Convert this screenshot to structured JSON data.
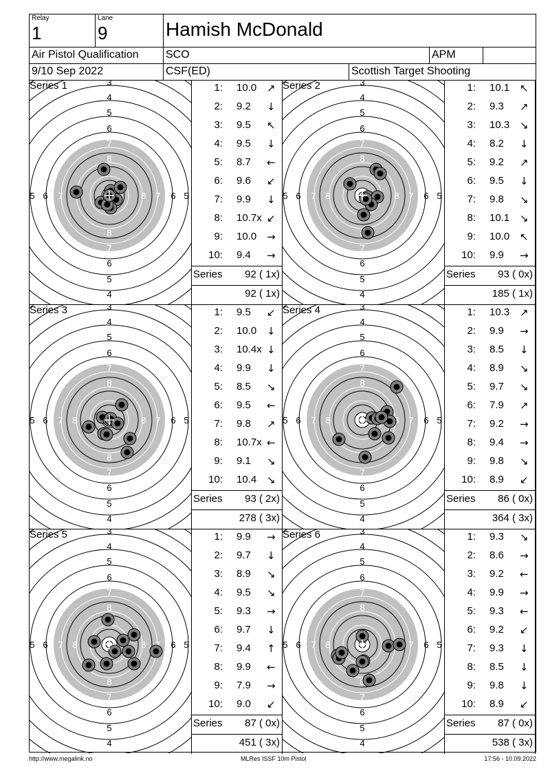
{
  "header": {
    "relay_label": "Relay",
    "relay_value": "1",
    "lane_label": "Lane",
    "lane_value": "9",
    "shooter_name": "Hamish McDonald",
    "event": "Air Pistol Qualification",
    "nation": "SCO",
    "class": "APM",
    "date": "9/10 Sep 2022",
    "club": "CSF(ED)",
    "organizer": "Scottish Target Shooting"
  },
  "series_total_label": "Series",
  "series": [
    {
      "label": "Series 1",
      "shots": [
        {
          "n": "1:",
          "v": "10.0",
          "dir": "up-right",
          "x": 2,
          "y": -7
        },
        {
          "n": "2:",
          "v": "9.2",
          "dir": "down",
          "x": -12,
          "y": 10
        },
        {
          "n": "3:",
          "v": "9.5",
          "dir": "up-left",
          "x": 16,
          "y": -12
        },
        {
          "n": "4:",
          "v": "9.5",
          "dir": "down",
          "x": 10,
          "y": 6
        },
        {
          "n": "5:",
          "v": "8.7",
          "dir": "left",
          "x": -48,
          "y": -5
        },
        {
          "n": "6:",
          "v": "9.6",
          "dir": "down-left",
          "x": 2,
          "y": 18
        },
        {
          "n": "7:",
          "v": "9.9",
          "dir": "down",
          "x": -3,
          "y": 13
        },
        {
          "n": "8:",
          "v": "10.7x",
          "dir": "down-left",
          "x": 0,
          "y": 0
        },
        {
          "n": "9:",
          "v": "10.0",
          "dir": "right",
          "x": 0,
          "y": 0
        },
        {
          "n": "10:",
          "v": "9.4",
          "dir": "right",
          "x": -8,
          "y": -38
        }
      ],
      "series_score": "92 ( 1x)",
      "running_total": "92 ( 1x)"
    },
    {
      "label": "Series 2",
      "shots": [
        {
          "n": "1:",
          "v": "10.1",
          "dir": "up-left",
          "x": 8,
          "y": 2
        },
        {
          "n": "2:",
          "v": "9.3",
          "dir": "up-right",
          "x": 20,
          "y": -38
        },
        {
          "n": "3:",
          "v": "10.3",
          "dir": "down-right",
          "x": 10,
          "y": 8
        },
        {
          "n": "4:",
          "v": "8.2",
          "dir": "down",
          "x": 8,
          "y": 54
        },
        {
          "n": "5:",
          "v": "9.2",
          "dir": "up-right",
          "x": 22,
          "y": 2
        },
        {
          "n": "6:",
          "v": "9.5",
          "dir": "down",
          "x": -18,
          "y": -17
        },
        {
          "n": "7:",
          "v": "9.8",
          "dir": "down-right",
          "x": 2,
          "y": 28
        },
        {
          "n": "8:",
          "v": "10.1",
          "dir": "down-right",
          "x": 13,
          "y": 13
        },
        {
          "n": "9:",
          "v": "10.0",
          "dir": "up-left",
          "x": 5,
          "y": 5
        },
        {
          "n": "10:",
          "v": "9.9",
          "dir": "right",
          "x": 26,
          "y": -32
        }
      ],
      "series_score": "93 ( 0x)",
      "running_total": "185 ( 1x)"
    },
    {
      "label": "Series 3",
      "shots": [
        {
          "n": "1:",
          "v": "9.5",
          "dir": "down-left",
          "x": -10,
          "y": -4
        },
        {
          "n": "2:",
          "v": "10.0",
          "dir": "down",
          "x": 0,
          "y": 0
        },
        {
          "n": "3:",
          "v": "10.4x",
          "dir": "down",
          "x": 2,
          "y": -2
        },
        {
          "n": "4:",
          "v": "9.9",
          "dir": "down",
          "x": -8,
          "y": 20
        },
        {
          "n": "5:",
          "v": "8.5",
          "dir": "down-right",
          "x": 26,
          "y": 47
        },
        {
          "n": "6:",
          "v": "9.5",
          "dir": "left",
          "x": -30,
          "y": 10
        },
        {
          "n": "7:",
          "v": "9.8",
          "dir": "up-right",
          "x": 18,
          "y": -22
        },
        {
          "n": "8:",
          "v": "10.7x",
          "dir": "left",
          "x": 12,
          "y": 5
        },
        {
          "n": "9:",
          "v": "9.1",
          "dir": "down-right",
          "x": 30,
          "y": 27
        },
        {
          "n": "10:",
          "v": "10.4",
          "dir": "down-right",
          "x": -4,
          "y": 21
        }
      ],
      "series_score": "93 ( 2x)",
      "running_total": "278 ( 3x)"
    },
    {
      "label": "Series 4",
      "shots": [
        {
          "n": "1:",
          "v": "10.3",
          "dir": "up-right",
          "x": 14,
          "y": -3
        },
        {
          "n": "2:",
          "v": "9.9",
          "dir": "right",
          "x": 22,
          "y": -2
        },
        {
          "n": "3:",
          "v": "8.5",
          "dir": "down",
          "x": 4,
          "y": 54
        },
        {
          "n": "4:",
          "v": "8.9",
          "dir": "down-right",
          "x": 38,
          "y": 26
        },
        {
          "n": "5:",
          "v": "9.7",
          "dir": "down-right",
          "x": 36,
          "y": -12
        },
        {
          "n": "6:",
          "v": "7.9",
          "dir": "up-right",
          "x": 50,
          "y": -48
        },
        {
          "n": "7:",
          "v": "9.2",
          "dir": "right",
          "x": 40,
          "y": 2
        },
        {
          "n": "8:",
          "v": "9.4",
          "dir": "right",
          "x": -34,
          "y": 28
        },
        {
          "n": "9:",
          "v": "9.8",
          "dir": "down-right",
          "x": 18,
          "y": 20
        },
        {
          "n": "10:",
          "v": "8.9",
          "dir": "down-left",
          "x": 28,
          "y": -4
        }
      ],
      "series_score": "86 ( 0x)",
      "running_total": "364 ( 3x)"
    },
    {
      "label": "Series 5",
      "shots": [
        {
          "n": "1:",
          "v": "9.9",
          "dir": "right",
          "x": 8,
          "y": 10
        },
        {
          "n": "2:",
          "v": "9.7",
          "dir": "down",
          "x": 36,
          "y": -14
        },
        {
          "n": "3:",
          "v": "8.9",
          "dir": "down-right",
          "x": -30,
          "y": 30
        },
        {
          "n": "4:",
          "v": "9.5",
          "dir": "down-right",
          "x": 28,
          "y": 10
        },
        {
          "n": "5:",
          "v": "9.3",
          "dir": "right",
          "x": -22,
          "y": -4
        },
        {
          "n": "6:",
          "v": "9.7",
          "dir": "down",
          "x": 20,
          "y": -6
        },
        {
          "n": "7:",
          "v": "9.4",
          "dir": "up",
          "x": -4,
          "y": 28
        },
        {
          "n": "8:",
          "v": "9.9",
          "dir": "left",
          "x": 36,
          "y": 28
        },
        {
          "n": "9:",
          "v": "7.9",
          "dir": "right",
          "x": 68,
          "y": 10
        },
        {
          "n": "10:",
          "v": "9.0",
          "dir": "down-left",
          "x": -2,
          "y": -36
        }
      ],
      "series_score": "87 ( 0x)",
      "running_total": "451 ( 3x)"
    },
    {
      "label": "Series 6",
      "shots": [
        {
          "n": "1:",
          "v": "9.3",
          "dir": "down-right",
          "x": -36,
          "y": 16
        },
        {
          "n": "2:",
          "v": "8.6",
          "dir": "right",
          "x": -34,
          "y": 20
        },
        {
          "n": "3:",
          "v": "9.2",
          "dir": "left",
          "x": 38,
          "y": 2
        },
        {
          "n": "4:",
          "v": "9.9",
          "dir": "right",
          "x": 2,
          "y": 24
        },
        {
          "n": "5:",
          "v": "9.3",
          "dir": "left",
          "x": -30,
          "y": 12
        },
        {
          "n": "6:",
          "v": "9.2",
          "dir": "down-left",
          "x": 54,
          "y": 0
        },
        {
          "n": "7:",
          "v": "9.3",
          "dir": "down",
          "x": -14,
          "y": 38
        },
        {
          "n": "8:",
          "v": "8.5",
          "dir": "down",
          "x": 10,
          "y": 52
        },
        {
          "n": "9:",
          "v": "9.8",
          "dir": "down",
          "x": 0,
          "y": 25
        },
        {
          "n": "10:",
          "v": "8.9",
          "dir": "down-left",
          "x": 0,
          "y": -12
        }
      ],
      "series_score": "87 ( 0x)",
      "running_total": "538 ( 3x)"
    }
  ],
  "footer": {
    "url": "http://www.megalink.no",
    "program": "MLRes ISSF 10m Pistol",
    "timestamp": "17:56 - 10.09.2022"
  }
}
